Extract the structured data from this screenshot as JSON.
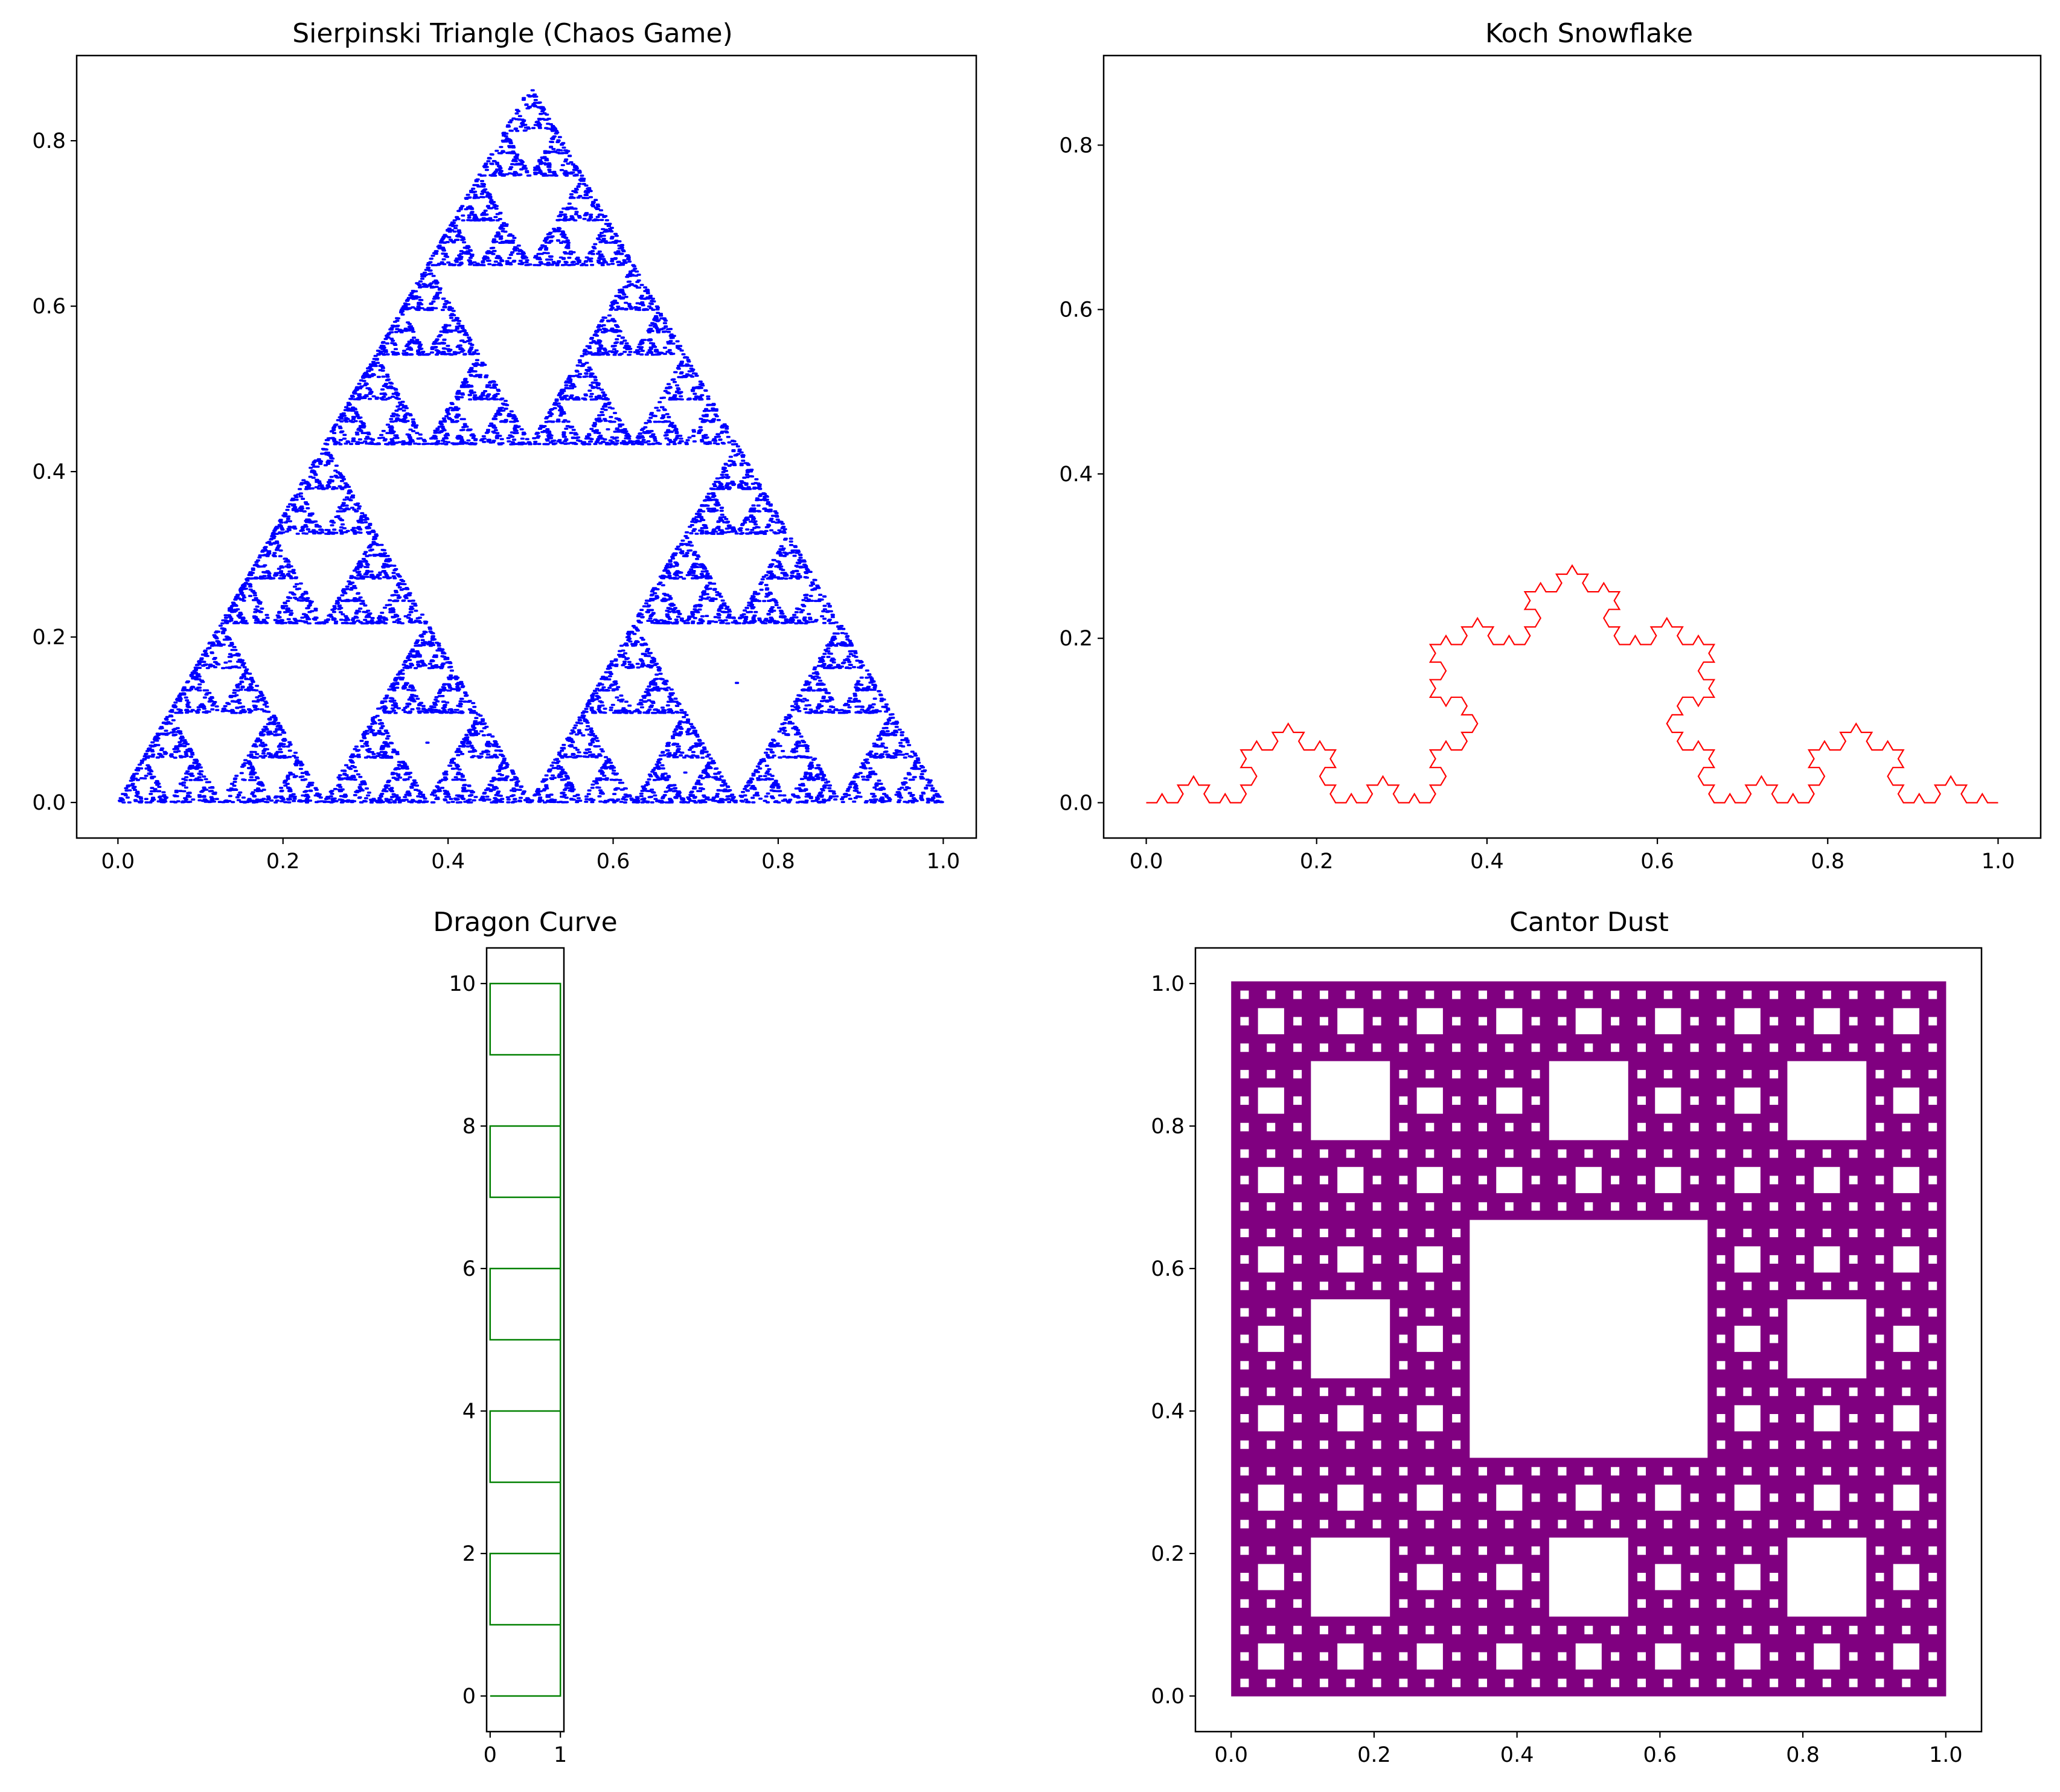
{
  "chart_data": [
    {
      "id": "sierpinski",
      "type": "scatter",
      "title": "Sierpinski Triangle (Chaos Game)",
      "xlabel": "",
      "ylabel": "",
      "xlim": [
        -0.05,
        1.04
      ],
      "ylim": [
        -0.043,
        0.903
      ],
      "xticks": [
        0.0,
        0.2,
        0.4,
        0.6,
        0.8,
        1.0
      ],
      "yticks": [
        0.0,
        0.2,
        0.4,
        0.6,
        0.8
      ],
      "xtick_labels": [
        "0.0",
        "0.2",
        "0.4",
        "0.6",
        "0.8",
        "1.0"
      ],
      "ytick_labels": [
        "0.0",
        "0.2",
        "0.4",
        "0.6",
        "0.8"
      ],
      "grid": false,
      "color": "#0000ff",
      "vertices": [
        [
          0,
          0
        ],
        [
          1,
          0
        ],
        [
          0.5,
          0.866
        ]
      ],
      "points": 10000,
      "marker_size": 1
    },
    {
      "id": "koch",
      "type": "line",
      "title": "Koch Snowflake",
      "xlabel": "",
      "ylabel": "",
      "xlim": [
        -0.05,
        1.05
      ],
      "ylim": [
        -0.043,
        0.909
      ],
      "xticks": [
        0.0,
        0.2,
        0.4,
        0.6,
        0.8,
        1.0
      ],
      "yticks": [
        0.0,
        0.2,
        0.4,
        0.6,
        0.8
      ],
      "xtick_labels": [
        "0.0",
        "0.2",
        "0.4",
        "0.6",
        "0.8",
        "1.0"
      ],
      "ytick_labels": [
        "0.0",
        "0.2",
        "0.4",
        "0.6",
        "0.8"
      ],
      "grid": false,
      "color": "#ff0000",
      "iterations": 4,
      "start": [
        0,
        0
      ],
      "end": [
        1,
        0
      ]
    },
    {
      "id": "dragon",
      "type": "line",
      "title": "Dragon Curve",
      "xlabel": "",
      "ylabel": "",
      "xlim": [
        -0.05,
        1.05
      ],
      "ylim": [
        -0.5,
        10.5
      ],
      "xticks": [
        0,
        1
      ],
      "yticks": [
        0,
        2,
        4,
        6,
        8,
        10
      ],
      "xtick_labels": [
        "0",
        "1"
      ],
      "ytick_labels": [
        "0",
        "2",
        "4",
        "6",
        "8",
        "10"
      ],
      "grid": false,
      "color": "#008000",
      "x": [
        0,
        1,
        1,
        0,
        0,
        1,
        1,
        0,
        0,
        1,
        1,
        0,
        0,
        1,
        1,
        0,
        0,
        1,
        1,
        0,
        0
      ],
      "y": [
        0,
        0,
        1,
        1,
        2,
        2,
        3,
        3,
        4,
        4,
        5,
        5,
        6,
        6,
        7,
        7,
        8,
        8,
        9,
        9,
        10
      ],
      "closing_segment": [
        [
          0,
          10
        ],
        [
          1,
          10
        ],
        [
          1,
          0
        ]
      ]
    },
    {
      "id": "cantor",
      "type": "scatter",
      "title": "Cantor Dust",
      "xlabel": "",
      "ylabel": "",
      "xlim": [
        -0.05,
        1.05
      ],
      "ylim": [
        -0.05,
        1.05
      ],
      "xticks": [
        0.0,
        0.2,
        0.4,
        0.6,
        0.8,
        1.0
      ],
      "yticks": [
        0.0,
        0.2,
        0.4,
        0.6,
        0.8,
        1.0
      ],
      "xtick_labels": [
        "0.0",
        "0.2",
        "0.4",
        "0.6",
        "0.8",
        "1.0"
      ],
      "ytick_labels": [
        "0.0",
        "0.2",
        "0.4",
        "0.6",
        "0.8",
        "1.0"
      ],
      "grid": false,
      "color": "#800080",
      "pattern": "sierpinski-carpet",
      "levels": 4
    }
  ]
}
